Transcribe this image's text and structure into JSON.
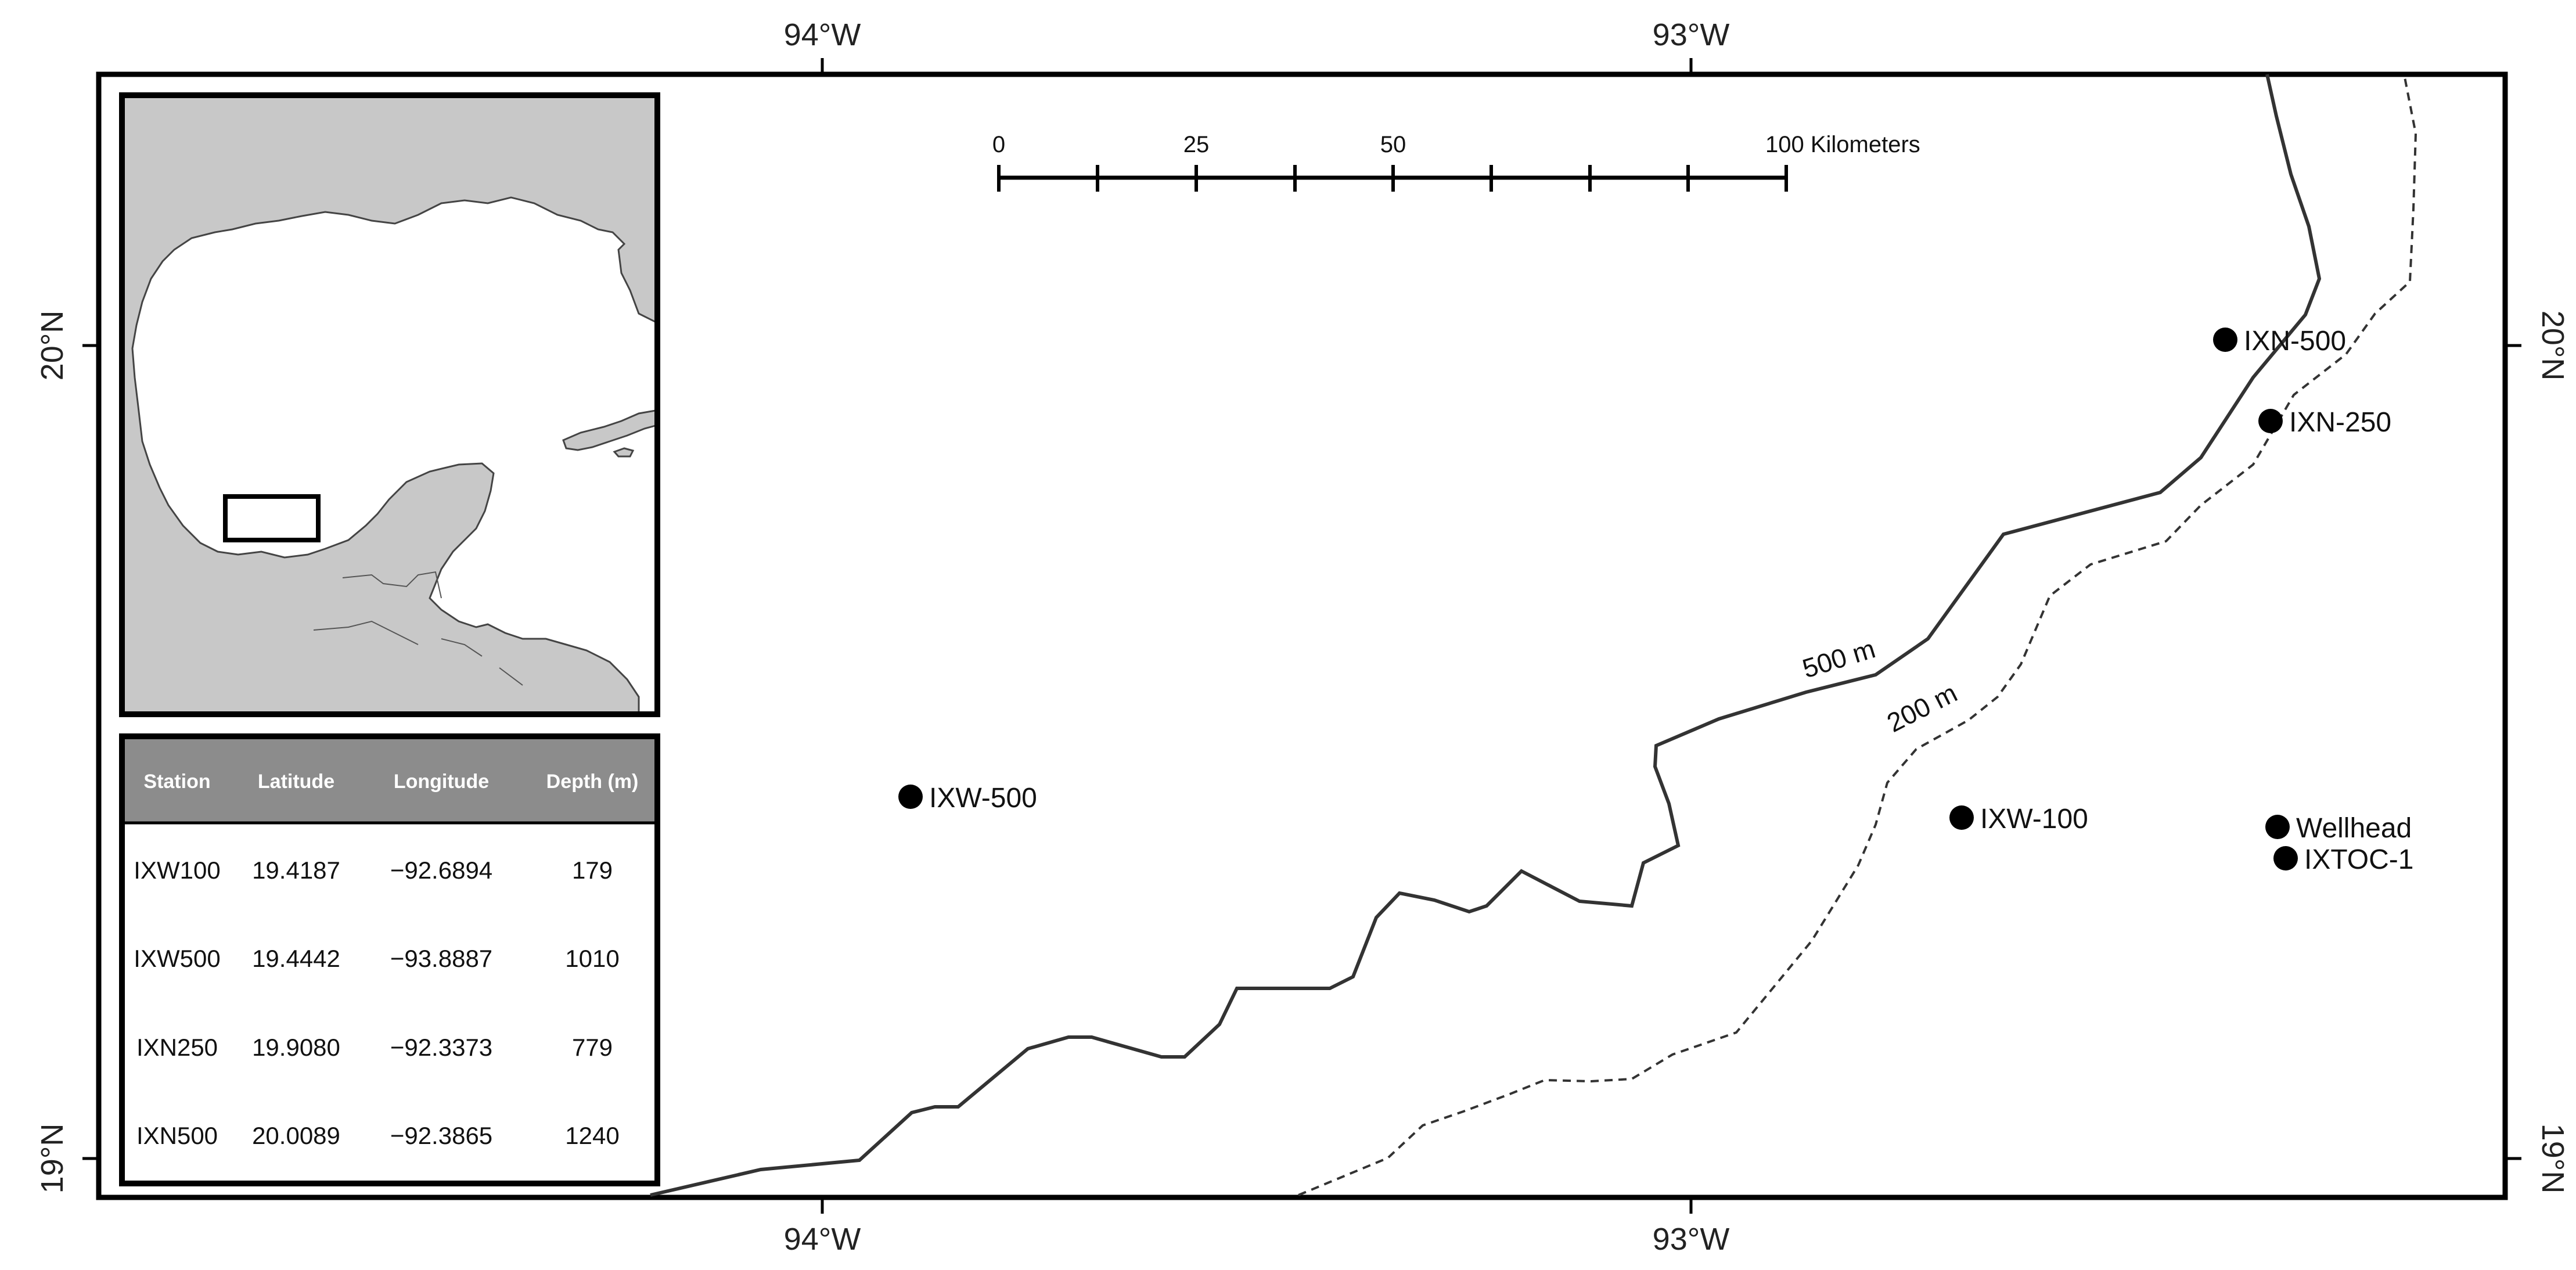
{
  "axis_labels": {
    "lon_left": "94°W",
    "lon_right": "93°W",
    "lat_top": "20°N",
    "lat_bottom": "19°N"
  },
  "scale_bar": {
    "labels": [
      "0",
      "25",
      "50",
      "100 Kilometers"
    ]
  },
  "stations": [
    {
      "id": "IXN-500",
      "label": "IXN-500"
    },
    {
      "id": "IXN-250",
      "label": "IXN-250"
    },
    {
      "id": "IXW-500",
      "label": "IXW-500"
    },
    {
      "id": "IXW-100",
      "label": "IXW-100"
    },
    {
      "id": "Wellhead",
      "label": "Wellhead"
    },
    {
      "id": "IXTOC-1",
      "label": "IXTOC-1"
    }
  ],
  "contours": [
    {
      "id": "500m",
      "label": "500 m",
      "style": "solid"
    },
    {
      "id": "200m",
      "label": "200 m",
      "style": "dashed"
    }
  ],
  "table": {
    "headers": [
      "Station",
      "Latitude",
      "Longitude",
      "Depth (m)"
    ],
    "rows": [
      [
        "IXW100",
        "19.4187",
        "−92.6894",
        "179"
      ],
      [
        "IXW500",
        "19.4442",
        "−93.8887",
        "1010"
      ],
      [
        "IXN250",
        "19.9080",
        "−92.3373",
        "779"
      ],
      [
        "IXN500",
        "20.0089",
        "−92.3865",
        "1240"
      ]
    ]
  },
  "colors": {
    "land": "#c8c8c8",
    "ocean": "#ffffff",
    "table_header": "#8c8c8c",
    "frame": "#000000"
  }
}
